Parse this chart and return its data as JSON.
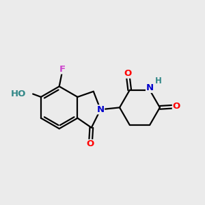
{
  "bg_color": "#ebebeb",
  "bond_color": "#000000",
  "bond_width": 1.6,
  "atom_colors": {
    "O": "#ff0000",
    "N": "#0000cc",
    "F": "#cc44cc",
    "HO": "#338888",
    "H": "#338888"
  },
  "font_size": 9.5
}
